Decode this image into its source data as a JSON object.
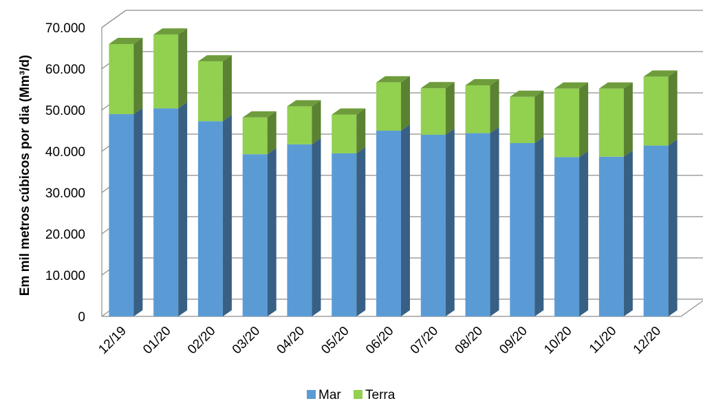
{
  "chart_data": {
    "type": "bar",
    "stacked": true,
    "three_d": true,
    "ylabel": "Em mil metros cúbicos por dia (Mm³/d)",
    "ylim": [
      0,
      70000
    ],
    "yticks": [
      0,
      10000,
      20000,
      30000,
      40000,
      50000,
      60000,
      70000
    ],
    "ytick_labels": [
      "0",
      "10.000",
      "20.000",
      "30.000",
      "40.000",
      "50.000",
      "60.000",
      "70.000"
    ],
    "categories": [
      "12/19",
      "01/20",
      "02/20",
      "03/20",
      "04/20",
      "05/20",
      "06/20",
      "07/20",
      "08/20",
      "09/20",
      "10/20",
      "11/20",
      "12/20"
    ],
    "series": [
      {
        "name": "Mar",
        "color": "#5b9bd5",
        "values": [
          49000,
          50400,
          47300,
          39300,
          41700,
          39500,
          45000,
          44000,
          44400,
          42000,
          38600,
          38700,
          41400
        ]
      },
      {
        "name": "Terra",
        "color": "#92d050",
        "values": [
          17000,
          17900,
          14500,
          8900,
          9200,
          9400,
          11700,
          11300,
          11600,
          11200,
          16600,
          16500,
          16700
        ]
      }
    ],
    "grid": true,
    "legend_position": "bottom"
  }
}
